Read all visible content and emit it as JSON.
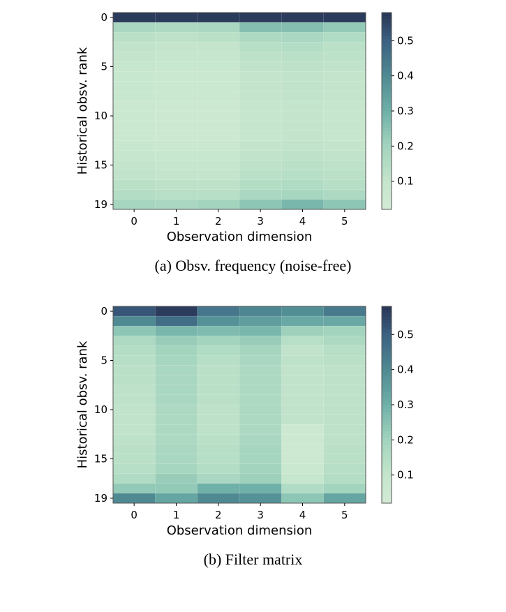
{
  "chart_data": [
    {
      "type": "heatmap",
      "caption": "(a) Obsv. frequency (noise-free)",
      "xlabel": "Observation dimension",
      "ylabel": "Historical obsv. rank",
      "x_ticks": [
        "0",
        "1",
        "2",
        "3",
        "4",
        "5"
      ],
      "y_ticks": [
        "0",
        "5",
        "10",
        "15",
        "19"
      ],
      "colorbar_ticks": [
        "0.1",
        "0.2",
        "0.3",
        "0.4",
        "0.5"
      ],
      "colorbar_range": [
        0.02,
        0.58
      ],
      "values": [
        [
          0.57,
          0.57,
          0.57,
          0.57,
          0.57,
          0.57
        ],
        [
          0.18,
          0.17,
          0.18,
          0.26,
          0.26,
          0.23
        ],
        [
          0.13,
          0.12,
          0.13,
          0.17,
          0.18,
          0.16
        ],
        [
          0.11,
          0.1,
          0.1,
          0.14,
          0.15,
          0.13
        ],
        [
          0.1,
          0.09,
          0.09,
          0.12,
          0.13,
          0.12
        ],
        [
          0.09,
          0.08,
          0.08,
          0.11,
          0.12,
          0.11
        ],
        [
          0.08,
          0.07,
          0.07,
          0.1,
          0.11,
          0.1
        ],
        [
          0.08,
          0.07,
          0.07,
          0.1,
          0.11,
          0.1
        ],
        [
          0.08,
          0.07,
          0.07,
          0.1,
          0.11,
          0.1
        ],
        [
          0.07,
          0.06,
          0.06,
          0.09,
          0.1,
          0.09
        ],
        [
          0.07,
          0.06,
          0.06,
          0.09,
          0.1,
          0.09
        ],
        [
          0.07,
          0.06,
          0.06,
          0.09,
          0.1,
          0.09
        ],
        [
          0.07,
          0.06,
          0.06,
          0.09,
          0.1,
          0.09
        ],
        [
          0.08,
          0.07,
          0.07,
          0.1,
          0.11,
          0.1
        ],
        [
          0.09,
          0.08,
          0.08,
          0.11,
          0.12,
          0.11
        ],
        [
          0.1,
          0.09,
          0.09,
          0.12,
          0.13,
          0.12
        ],
        [
          0.11,
          0.1,
          0.1,
          0.13,
          0.14,
          0.13
        ],
        [
          0.13,
          0.12,
          0.12,
          0.15,
          0.16,
          0.14
        ],
        [
          0.15,
          0.14,
          0.14,
          0.18,
          0.19,
          0.17
        ],
        [
          0.19,
          0.18,
          0.2,
          0.24,
          0.28,
          0.24
        ]
      ]
    },
    {
      "type": "heatmap",
      "caption": "(b) Filter matrix",
      "xlabel": "Observation dimension",
      "ylabel": "Historical obsv. rank",
      "x_ticks": [
        "0",
        "1",
        "2",
        "3",
        "4",
        "5"
      ],
      "y_ticks": [
        "0",
        "5",
        "10",
        "15",
        "19"
      ],
      "colorbar_ticks": [
        "0.1",
        "0.2",
        "0.3",
        "0.4",
        "0.5"
      ],
      "colorbar_range": [
        0.02,
        0.58
      ],
      "values": [
        [
          0.52,
          0.57,
          0.45,
          0.41,
          0.39,
          0.44
        ],
        [
          0.4,
          0.47,
          0.38,
          0.35,
          0.32,
          0.32
        ],
        [
          0.24,
          0.28,
          0.27,
          0.28,
          0.21,
          0.2
        ],
        [
          0.17,
          0.22,
          0.2,
          0.22,
          0.14,
          0.17
        ],
        [
          0.15,
          0.2,
          0.16,
          0.19,
          0.11,
          0.14
        ],
        [
          0.14,
          0.19,
          0.14,
          0.18,
          0.12,
          0.13
        ],
        [
          0.13,
          0.18,
          0.13,
          0.17,
          0.11,
          0.12
        ],
        [
          0.13,
          0.18,
          0.13,
          0.17,
          0.11,
          0.12
        ],
        [
          0.12,
          0.18,
          0.13,
          0.17,
          0.11,
          0.12
        ],
        [
          0.12,
          0.18,
          0.13,
          0.17,
          0.11,
          0.12
        ],
        [
          0.11,
          0.17,
          0.12,
          0.17,
          0.11,
          0.12
        ],
        [
          0.11,
          0.17,
          0.12,
          0.17,
          0.11,
          0.12
        ],
        [
          0.11,
          0.17,
          0.12,
          0.17,
          0.06,
          0.12
        ],
        [
          0.12,
          0.17,
          0.13,
          0.18,
          0.06,
          0.12
        ],
        [
          0.13,
          0.18,
          0.14,
          0.19,
          0.06,
          0.13
        ],
        [
          0.13,
          0.18,
          0.14,
          0.19,
          0.06,
          0.13
        ],
        [
          0.14,
          0.19,
          0.15,
          0.2,
          0.07,
          0.14
        ],
        [
          0.16,
          0.22,
          0.18,
          0.21,
          0.09,
          0.15
        ],
        [
          0.23,
          0.23,
          0.3,
          0.3,
          0.16,
          0.2
        ],
        [
          0.4,
          0.33,
          0.4,
          0.38,
          0.24,
          0.33
        ]
      ]
    }
  ],
  "colormap": [
    "#d4ebd6",
    "#c4e5cc",
    "#a3d4be",
    "#6fb0a8",
    "#4f8a93",
    "#3c6182",
    "#283555"
  ]
}
